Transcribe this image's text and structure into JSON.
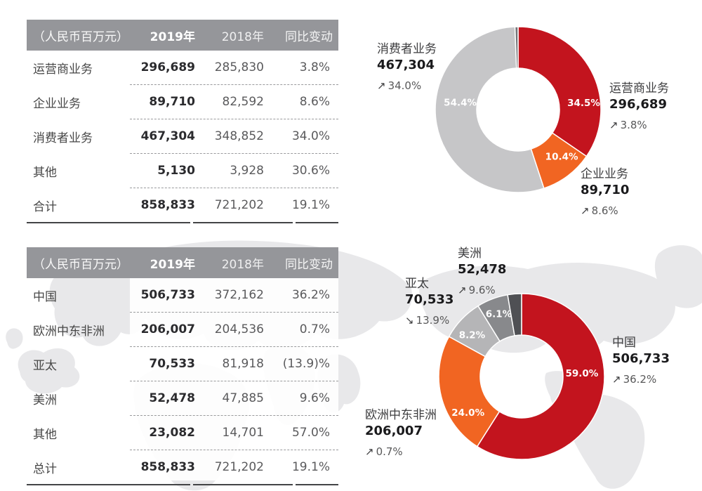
{
  "page": {
    "background": "#ffffff"
  },
  "colors": {
    "red": "#c3141e",
    "orange": "#f16522",
    "gray": "#c6c6c8",
    "lightgray": "#b5b5b7",
    "medgray": "#88898c",
    "dark1": "#737477",
    "dark2": "#4f5054",
    "header_bg": "#95969a",
    "map": "#e8e8ea"
  },
  "glyphs": {
    "up_arrow": "↗",
    "down_arrow": "↘"
  },
  "tables": [
    {
      "columns": {
        "unit": "（人民币百万元）",
        "y2019": "2019年",
        "y2018": "2018年",
        "change": "同比变动"
      },
      "rows": [
        {
          "label": "运营商业务",
          "v2019": "296,689",
          "v2018": "285,830",
          "change": "3.8%"
        },
        {
          "label": "企业业务",
          "v2019": "89,710",
          "v2018": "82,592",
          "change": "8.6%"
        },
        {
          "label": "消费者业务",
          "v2019": "467,304",
          "v2018": "348,852",
          "change": "34.0%"
        },
        {
          "label": "其他",
          "v2019": "5,130",
          "v2018": "3,928",
          "change": "30.6%"
        },
        {
          "label": "合计",
          "v2019": "858,833",
          "v2018": "721,202",
          "change": "19.1%",
          "is_total": true
        }
      ]
    },
    {
      "columns": {
        "unit": "（人民币百万元）",
        "y2019": "2019年",
        "y2018": "2018年",
        "change": "同比变动"
      },
      "rows": [
        {
          "label": "中国",
          "v2019": "506,733",
          "v2018": "372,162",
          "change": "36.2%"
        },
        {
          "label": "欧洲中东非洲",
          "v2019": "206,007",
          "v2018": "204,536",
          "change": "0.7%"
        },
        {
          "label": "亚太",
          "v2019": "70,533",
          "v2018": "81,918",
          "change": "(13.9)%"
        },
        {
          "label": "美洲",
          "v2019": "52,478",
          "v2018": "47,885",
          "change": "9.6%"
        },
        {
          "label": "其他",
          "v2019": "23,082",
          "v2018": "14,701",
          "change": "57.0%"
        },
        {
          "label": "总计",
          "v2019": "858,833",
          "v2018": "721,202",
          "change": "19.1%",
          "is_total": true
        }
      ]
    }
  ],
  "chart_data": [
    {
      "type": "pie",
      "subtype": "donut",
      "unit": "人民币百万元",
      "slices": [
        {
          "key": "carrier",
          "name": "运营商业务",
          "value": 296689,
          "amount": "296,689",
          "share": 34.5,
          "share_label": "34.5%",
          "change": "3.8%",
          "direction": "up",
          "color": "red",
          "show_share_label": true
        },
        {
          "key": "enterprise",
          "name": "企业业务",
          "value": 89710,
          "amount": "89,710",
          "share": 10.4,
          "share_label": "10.4%",
          "change": "8.6%",
          "direction": "up",
          "color": "orange",
          "show_share_label": true
        },
        {
          "key": "consumer",
          "name": "消费者业务",
          "value": 467304,
          "amount": "467,304",
          "share": 54.4,
          "share_label": "54.4%",
          "change": "34.0%",
          "direction": "up",
          "color": "gray",
          "show_share_label": true
        },
        {
          "key": "other",
          "name": "其他",
          "value": 5130,
          "amount": "5,130",
          "share": 0.6,
          "share_label": "0.6%",
          "change": "30.6%",
          "direction": "up",
          "color": "dark1",
          "show_share_label": false
        }
      ]
    },
    {
      "type": "pie",
      "subtype": "donut",
      "unit": "人民币百万元",
      "slices": [
        {
          "key": "china",
          "name": "中国",
          "value": 506733,
          "amount": "506,733",
          "share": 59.0,
          "share_label": "59.0%",
          "change": "36.2%",
          "direction": "up",
          "color": "red",
          "show_share_label": true
        },
        {
          "key": "emea",
          "name": "欧洲中东非洲",
          "value": 206007,
          "amount": "206,007",
          "share": 24.0,
          "share_label": "24.0%",
          "change": "0.7%",
          "direction": "up",
          "color": "orange",
          "show_share_label": true
        },
        {
          "key": "apac",
          "name": "亚太",
          "value": 70533,
          "amount": "70,533",
          "share": 8.2,
          "share_label": "8.2%",
          "change": "13.9%",
          "direction": "down",
          "color": "lightgray",
          "show_share_label": true
        },
        {
          "key": "americas",
          "name": "美洲",
          "value": 52478,
          "amount": "52,478",
          "share": 6.1,
          "share_label": "6.1%",
          "change": "9.6%",
          "direction": "up",
          "color": "medgray",
          "show_share_label": true
        },
        {
          "key": "other",
          "name": "其他",
          "value": 23082,
          "amount": "23,082",
          "share": 2.7,
          "share_label": "2.7%",
          "change": "57.0%",
          "direction": "up",
          "color": "dark2",
          "show_share_label": false
        }
      ]
    }
  ]
}
